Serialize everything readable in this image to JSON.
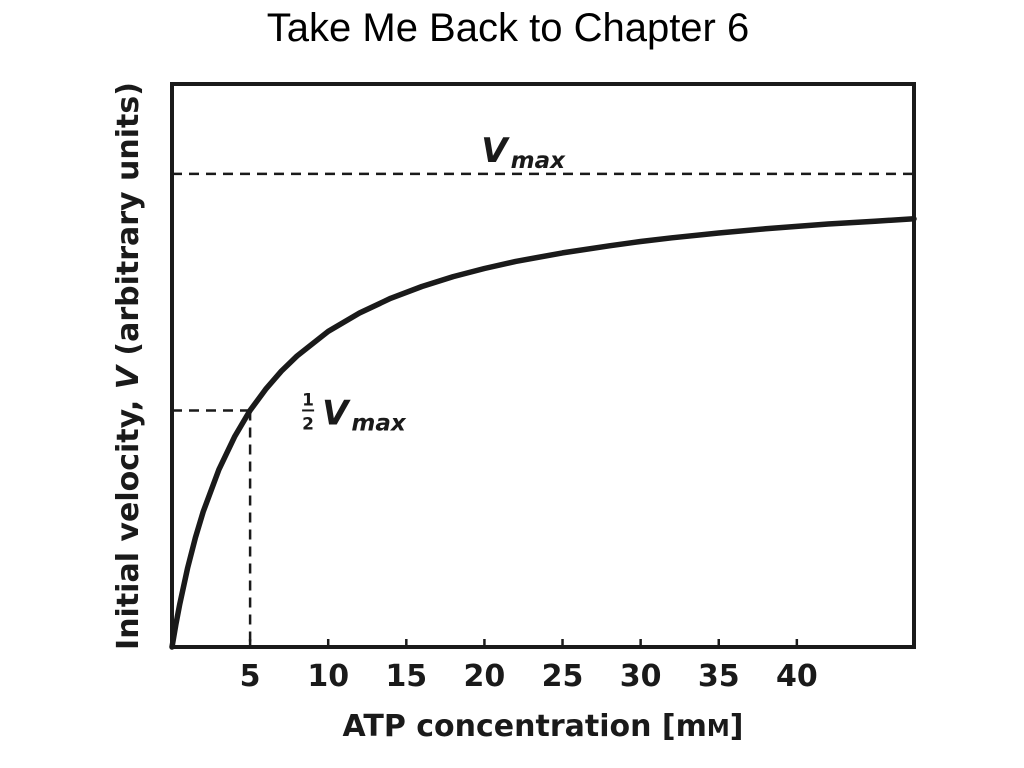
{
  "slide": {
    "title": "Take Me Back to Chapter 6"
  },
  "chart_data": {
    "type": "line",
    "xlabel": "ATP concentration [mM]",
    "ylabel": "Initial velocity, V (arbitrary units)",
    "ylabel_parts": {
      "before": "Initial velocity, ",
      "italic": "V",
      "after": " (arbitrary units)"
    },
    "xlabel_parts": {
      "before": "ATP concentration [m",
      "smallcaps": "M",
      "after": "]"
    },
    "x_ticks": [
      5,
      10,
      15,
      20,
      25,
      30,
      35,
      40
    ],
    "xlim": [
      0,
      47.5
    ],
    "ylim": [
      0,
      1.19
    ],
    "grid": false,
    "series": [
      {
        "x": [
          0,
          0.25,
          0.5,
          1,
          1.5,
          2,
          3,
          4,
          5,
          6,
          7,
          8,
          10,
          12,
          14,
          16,
          18,
          20,
          22,
          25,
          28,
          30,
          32,
          35,
          38,
          40,
          42,
          45,
          47.5
        ],
        "y": [
          0,
          0.048,
          0.091,
          0.167,
          0.231,
          0.286,
          0.375,
          0.444,
          0.5,
          0.545,
          0.583,
          0.615,
          0.667,
          0.706,
          0.737,
          0.762,
          0.783,
          0.8,
          0.815,
          0.833,
          0.848,
          0.857,
          0.865,
          0.875,
          0.884,
          0.889,
          0.894,
          0.9,
          0.905
        ]
      }
    ],
    "annotations": {
      "vmax": {
        "y": 1.0,
        "main": "V",
        "sub": "max"
      },
      "half_vmax": {
        "x": 5,
        "y": 0.5,
        "frac_num": "1",
        "frac_den": "2",
        "main": "V",
        "sub": "max"
      }
    }
  }
}
